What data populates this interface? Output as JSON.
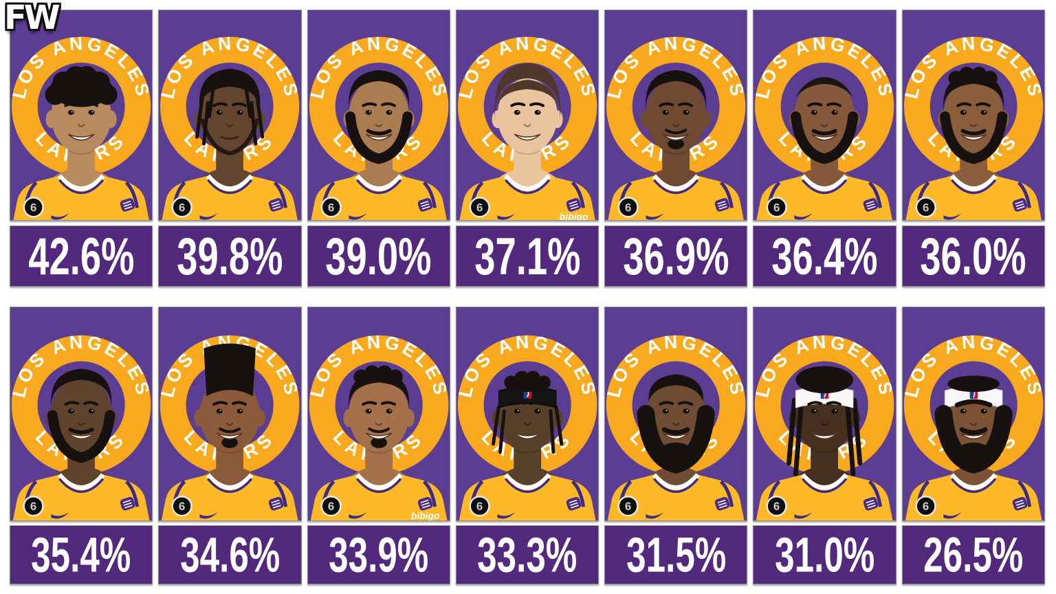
{
  "watermark": "FW",
  "branding": {
    "arc_top": "LOS ANGELES",
    "arc_bottom": "LAKERS"
  },
  "jersey": {
    "shoulder_patch_number": "6",
    "sponsor_text": "bibigo"
  },
  "colors": {
    "card_bg": "#5C3D94",
    "ring_gold": "#F9A91E",
    "bar_bg": "#53297E",
    "arc_text": "#FFFFFF",
    "pct_text": "#FFFFFF",
    "jersey_yellow": "#FDB927",
    "jersey_trim": "#3E2A84",
    "card_border": "#8F8F8F"
  },
  "cards": [
    {
      "pct": "42.6%",
      "avatar": {
        "skin": "#b98a60",
        "hair": "curlyFro",
        "beard": "none",
        "headband": "none",
        "smile": true
      }
    },
    {
      "pct": "39.8%",
      "avatar": {
        "skin": "#64452f",
        "hair": "braids",
        "beard": "light",
        "headband": "none",
        "smile": false
      }
    },
    {
      "pct": "39.0%",
      "avatar": {
        "skin": "#aa7c52",
        "hair": "shortFade",
        "beard": "full",
        "headband": "none",
        "smile": true
      }
    },
    {
      "pct": "37.1%",
      "avatar": {
        "skin": "#eac49e",
        "hair": "flow",
        "hairColor": "#4f382a",
        "beard": "none",
        "headband": "none",
        "smile": true,
        "show_sponsor": true
      }
    },
    {
      "pct": "36.9%",
      "avatar": {
        "skin": "#6d4a31",
        "hair": "shortCrop",
        "beard": "goatee",
        "headband": "none",
        "smile": true
      }
    },
    {
      "pct": "36.4%",
      "avatar": {
        "skin": "#86583c",
        "hair": "balding",
        "beard": "full",
        "headband": "none",
        "smile": true
      }
    },
    {
      "pct": "36.0%",
      "avatar": {
        "skin": "#8a5d3c",
        "hair": "curlyTop",
        "beard": "full",
        "headband": "none",
        "smile": true
      }
    },
    {
      "pct": "35.4%",
      "avatar": {
        "skin": "#60432d",
        "hair": "shortCrop",
        "beard": "full",
        "headband": "none",
        "smile": true
      }
    },
    {
      "pct": "34.6%",
      "avatar": {
        "skin": "#8a5a3a",
        "hair": "hightop",
        "beard": "goatee",
        "headband": "none",
        "smile": true
      }
    },
    {
      "pct": "33.9%",
      "avatar": {
        "skin": "#a5714a",
        "hair": "curlyTop",
        "beard": "goatee",
        "headband": "none",
        "smile": true,
        "show_sponsor": true
      }
    },
    {
      "pct": "33.3%",
      "avatar": {
        "skin": "#58402b",
        "hair": "sideBraids",
        "beard": "none",
        "headband": "black",
        "smile": true
      }
    },
    {
      "pct": "31.5%",
      "avatar": {
        "skin": "#6f4c33",
        "hair": "receding",
        "beard": "big",
        "headband": "none",
        "smile": true
      }
    },
    {
      "pct": "31.0%",
      "avatar": {
        "skin": "#45301f",
        "hair": "twists",
        "beard": "none",
        "headband": "white",
        "smile": true
      }
    },
    {
      "pct": "26.5%",
      "avatar": {
        "skin": "#7c5236",
        "hair": "none",
        "beard": "big",
        "headband": "white",
        "smile": true,
        "unibrow": true
      }
    }
  ]
}
